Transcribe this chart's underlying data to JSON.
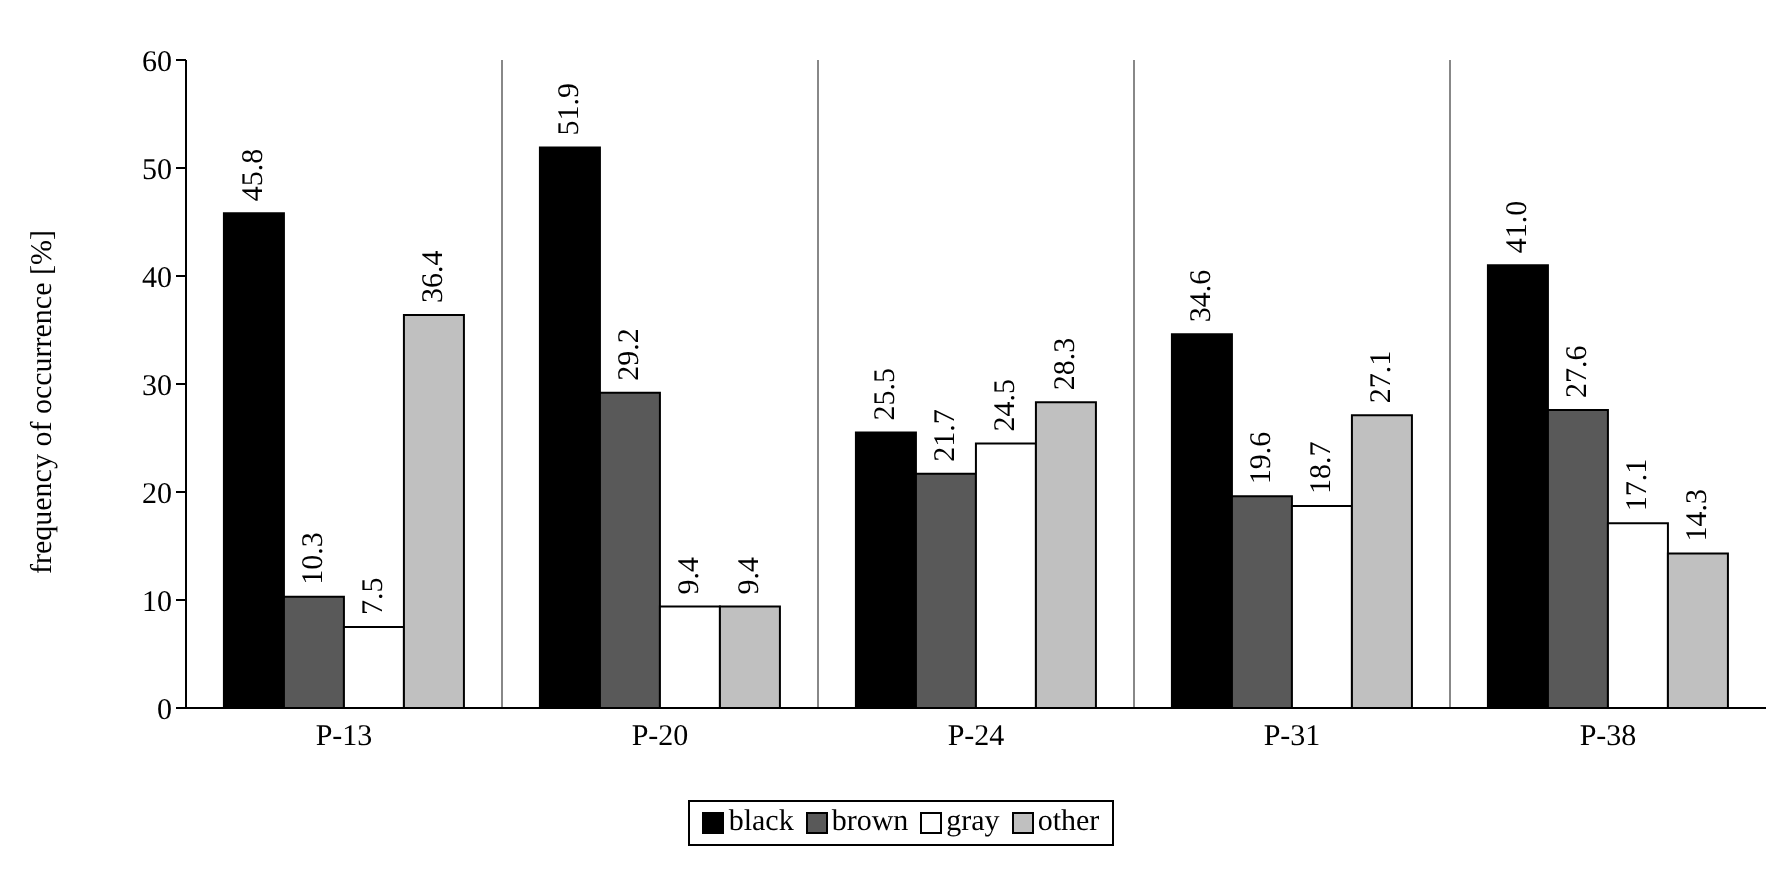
{
  "chart_data": {
    "type": "bar",
    "ylabel": "frequency of occurrence [%]",
    "categories": [
      "P-13",
      "P-20",
      "P-24",
      "P-31",
      "P-38"
    ],
    "series": [
      {
        "name": "black",
        "color": "#000000",
        "values": [
          45.8,
          51.9,
          25.5,
          34.6,
          41.0
        ],
        "value_labels": [
          "45.8",
          "51.9",
          "25.5",
          "34.6",
          "41.0"
        ]
      },
      {
        "name": "brown",
        "color": "#595959",
        "values": [
          10.3,
          29.2,
          21.7,
          19.6,
          27.6
        ],
        "value_labels": [
          "10.3",
          "29.2",
          "21.7",
          "19.6",
          "27.6"
        ]
      },
      {
        "name": "gray",
        "color": "#ffffff",
        "values": [
          7.5,
          9.4,
          24.5,
          18.7,
          17.1
        ],
        "value_labels": [
          "7.5",
          "9.4",
          "24.5",
          "18.7",
          "17.1"
        ]
      },
      {
        "name": "other",
        "color": "#c0c0c0",
        "values": [
          36.4,
          9.4,
          28.3,
          27.1,
          14.3
        ],
        "value_labels": [
          "36.4",
          "9.4",
          "28.3",
          "27.1",
          "14.3"
        ]
      }
    ],
    "ylim": [
      0,
      60
    ],
    "yticks": [
      0,
      10,
      20,
      30,
      40,
      50,
      60
    ],
    "grid": "x",
    "legend": "bottom"
  }
}
